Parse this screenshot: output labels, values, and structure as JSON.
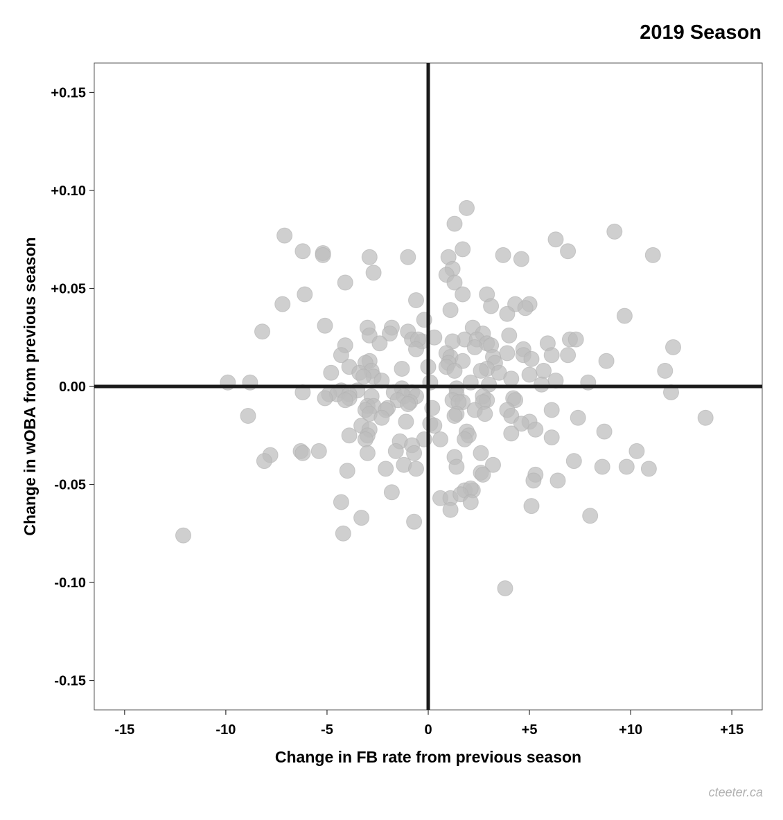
{
  "chart_data": {
    "type": "scatter",
    "title": "2019 Season",
    "xlabel": "Change in FB rate from previous season",
    "ylabel": "Change in wOBA from previous season",
    "xlim": [
      -16.5,
      16.5
    ],
    "ylim": [
      -0.165,
      0.165
    ],
    "x_ticks": [
      -15,
      -10,
      -5,
      0,
      5,
      10,
      15
    ],
    "x_tick_labels": [
      "-15",
      "-10",
      "-5",
      "0",
      "+5",
      "+10",
      "+15"
    ],
    "y_ticks": [
      0.15,
      0.1,
      0.05,
      0.0,
      -0.05,
      -0.1,
      -0.15
    ],
    "y_tick_labels": [
      "+0.15",
      "+0.10",
      "+0.05",
      "0.00",
      "-0.05",
      "-0.10",
      "-0.15"
    ],
    "reference_lines": {
      "x": 0,
      "y": 0
    },
    "grid": false,
    "legend": "none",
    "point_color": "#bdbdbd",
    "points": [
      [
        1.9,
        0.091
      ],
      [
        1.3,
        0.083
      ],
      [
        9.2,
        0.079
      ],
      [
        -7.1,
        0.077
      ],
      [
        6.3,
        0.075
      ],
      [
        1.7,
        0.07
      ],
      [
        6.9,
        0.069
      ],
      [
        -6.2,
        0.069
      ],
      [
        -5.2,
        0.068
      ],
      [
        -5.2,
        0.067
      ],
      [
        -2.9,
        0.066
      ],
      [
        -1.0,
        0.066
      ],
      [
        1.0,
        0.066
      ],
      [
        3.7,
        0.067
      ],
      [
        4.6,
        0.065
      ],
      [
        11.1,
        0.067
      ],
      [
        1.2,
        0.06
      ],
      [
        0.9,
        0.057
      ],
      [
        -2.7,
        0.058
      ],
      [
        1.3,
        0.053
      ],
      [
        -4.1,
        0.053
      ],
      [
        1.7,
        0.047
      ],
      [
        2.9,
        0.047
      ],
      [
        -6.1,
        0.047
      ],
      [
        -0.6,
        0.044
      ],
      [
        4.3,
        0.042
      ],
      [
        5.0,
        0.042
      ],
      [
        -7.2,
        0.042
      ],
      [
        3.1,
        0.041
      ],
      [
        1.1,
        0.039
      ],
      [
        4.8,
        0.04
      ],
      [
        3.9,
        0.037
      ],
      [
        9.7,
        0.036
      ],
      [
        -0.2,
        0.034
      ],
      [
        -5.1,
        0.031
      ],
      [
        -3.0,
        0.03
      ],
      [
        2.2,
        0.03
      ],
      [
        -1.8,
        0.03
      ],
      [
        -8.2,
        0.028
      ],
      [
        -1.0,
        0.028
      ],
      [
        2.7,
        0.027
      ],
      [
        -1.9,
        0.027
      ],
      [
        -2.9,
        0.026
      ],
      [
        4.0,
        0.026
      ],
      [
        7.0,
        0.024
      ],
      [
        0.3,
        0.025
      ],
      [
        -0.8,
        0.024
      ],
      [
        1.8,
        0.024
      ],
      [
        2.4,
        0.024
      ],
      [
        7.3,
        0.024
      ],
      [
        -0.3,
        0.023
      ],
      [
        -0.5,
        0.024
      ],
      [
        1.2,
        0.023
      ],
      [
        2.9,
        0.022
      ],
      [
        -2.4,
        0.022
      ],
      [
        5.9,
        0.022
      ],
      [
        -4.1,
        0.021
      ],
      [
        3.1,
        0.021
      ],
      [
        12.1,
        0.02
      ],
      [
        2.3,
        0.02
      ],
      [
        -0.6,
        0.019
      ],
      [
        4.7,
        0.019
      ],
      [
        3.9,
        0.017
      ],
      [
        0.9,
        0.017
      ],
      [
        -4.3,
        0.016
      ],
      [
        4.7,
        0.016
      ],
      [
        6.1,
        0.016
      ],
      [
        6.9,
        0.016
      ],
      [
        1.1,
        0.015
      ],
      [
        3.2,
        0.015
      ],
      [
        -2.9,
        0.013
      ],
      [
        5.1,
        0.014
      ],
      [
        8.8,
        0.013
      ],
      [
        -3.1,
        0.012
      ],
      [
        1.7,
        0.013
      ],
      [
        1.0,
        0.012
      ],
      [
        3.3,
        0.012
      ],
      [
        0.9,
        0.01
      ],
      [
        0.0,
        0.01
      ],
      [
        -3.9,
        0.01
      ],
      [
        2.9,
        0.009
      ],
      [
        -1.3,
        0.009
      ],
      [
        1.3,
        0.008
      ],
      [
        2.6,
        0.008
      ],
      [
        -2.8,
        0.008
      ],
      [
        11.7,
        0.008
      ],
      [
        5.7,
        0.008
      ],
      [
        -4.8,
        0.007
      ],
      [
        3.5,
        0.007
      ],
      [
        -3.4,
        0.007
      ],
      [
        -2.7,
        0.005
      ],
      [
        -3.2,
        0.005
      ],
      [
        4.1,
        0.004
      ],
      [
        5.0,
        0.006
      ],
      [
        -2.3,
        0.003
      ],
      [
        6.3,
        0.003
      ],
      [
        -9.9,
        0.002
      ],
      [
        -8.8,
        0.002
      ],
      [
        2.1,
        0.002
      ],
      [
        0.1,
        0.002
      ],
      [
        7.9,
        0.002
      ],
      [
        5.6,
        0.001
      ],
      [
        3.0,
        0.001
      ],
      [
        1.4,
        -0.001
      ],
      [
        -1.3,
        -0.001
      ],
      [
        -4.3,
        -0.002
      ],
      [
        -3.5,
        -0.002
      ],
      [
        -0.8,
        -0.003
      ],
      [
        -1.7,
        -0.003
      ],
      [
        12.0,
        -0.003
      ],
      [
        -6.2,
        -0.003
      ],
      [
        -4.9,
        -0.004
      ],
      [
        -4.5,
        -0.004
      ],
      [
        -3.9,
        -0.004
      ],
      [
        1.4,
        -0.004
      ],
      [
        -2.8,
        -0.005
      ],
      [
        2.7,
        -0.005
      ],
      [
        -1.2,
        -0.005
      ],
      [
        -0.6,
        -0.005
      ],
      [
        -5.1,
        -0.006
      ],
      [
        -3.9,
        -0.006
      ],
      [
        4.2,
        -0.006
      ],
      [
        1.2,
        -0.007
      ],
      [
        -1.5,
        -0.007
      ],
      [
        4.3,
        -0.007
      ],
      [
        -4.1,
        -0.007
      ],
      [
        2.9,
        -0.007
      ],
      [
        1.7,
        -0.008
      ],
      [
        -0.9,
        -0.008
      ],
      [
        2.7,
        -0.008
      ],
      [
        1.5,
        -0.008
      ],
      [
        -1.0,
        -0.009
      ],
      [
        -3.0,
        -0.01
      ],
      [
        -2.7,
        -0.01
      ],
      [
        -2.0,
        -0.011
      ],
      [
        0.2,
        -0.011
      ],
      [
        3.9,
        -0.012
      ],
      [
        6.1,
        -0.012
      ],
      [
        -3.1,
        -0.012
      ],
      [
        -2.1,
        -0.012
      ],
      [
        2.3,
        -0.012
      ],
      [
        -2.9,
        -0.014
      ],
      [
        2.8,
        -0.014
      ],
      [
        1.4,
        -0.014
      ],
      [
        4.1,
        -0.015
      ],
      [
        1.3,
        -0.015
      ],
      [
        -8.9,
        -0.015
      ],
      [
        13.7,
        -0.016
      ],
      [
        7.4,
        -0.016
      ],
      [
        -2.3,
        -0.016
      ],
      [
        5.0,
        -0.018
      ],
      [
        0.1,
        -0.019
      ],
      [
        4.6,
        -0.019
      ],
      [
        -3.3,
        -0.02
      ],
      [
        0.3,
        -0.02
      ],
      [
        -2.9,
        -0.022
      ],
      [
        5.3,
        -0.022
      ],
      [
        -1.1,
        -0.018
      ],
      [
        1.9,
        -0.023
      ],
      [
        -3.0,
        -0.025
      ],
      [
        -3.9,
        -0.025
      ],
      [
        4.1,
        -0.024
      ],
      [
        2.0,
        -0.025
      ],
      [
        8.7,
        -0.023
      ],
      [
        6.1,
        -0.026
      ],
      [
        -3.1,
        -0.027
      ],
      [
        -1.4,
        -0.028
      ],
      [
        -0.2,
        -0.027
      ],
      [
        0.6,
        -0.027
      ],
      [
        1.8,
        -0.027
      ],
      [
        -0.8,
        -0.03
      ],
      [
        10.3,
        -0.033
      ],
      [
        -1.6,
        -0.033
      ],
      [
        -3.0,
        -0.034
      ],
      [
        -0.7,
        -0.034
      ],
      [
        -6.3,
        -0.033
      ],
      [
        -6.2,
        -0.034
      ],
      [
        -7.8,
        -0.035
      ],
      [
        -5.4,
        -0.033
      ],
      [
        2.6,
        -0.034
      ],
      [
        -8.1,
        -0.038
      ],
      [
        1.3,
        -0.036
      ],
      [
        7.2,
        -0.038
      ],
      [
        3.2,
        -0.04
      ],
      [
        1.4,
        -0.041
      ],
      [
        -1.2,
        -0.04
      ],
      [
        -0.6,
        -0.042
      ],
      [
        -2.1,
        -0.042
      ],
      [
        -4.0,
        -0.043
      ],
      [
        8.6,
        -0.041
      ],
      [
        9.8,
        -0.041
      ],
      [
        10.9,
        -0.042
      ],
      [
        2.6,
        -0.044
      ],
      [
        2.7,
        -0.045
      ],
      [
        5.3,
        -0.045
      ],
      [
        5.2,
        -0.048
      ],
      [
        6.4,
        -0.048
      ],
      [
        1.8,
        -0.053
      ],
      [
        2.2,
        -0.053
      ],
      [
        2.1,
        -0.052
      ],
      [
        -1.8,
        -0.054
      ],
      [
        0.6,
        -0.057
      ],
      [
        1.1,
        -0.057
      ],
      [
        1.6,
        -0.055
      ],
      [
        -4.3,
        -0.059
      ],
      [
        2.1,
        -0.059
      ],
      [
        5.1,
        -0.061
      ],
      [
        1.1,
        -0.063
      ],
      [
        8.0,
        -0.066
      ],
      [
        -3.3,
        -0.067
      ],
      [
        -0.7,
        -0.069
      ],
      [
        -4.2,
        -0.075
      ],
      [
        -12.1,
        -0.076
      ],
      [
        3.8,
        -0.103
      ]
    ]
  },
  "credit": "cteeter.ca"
}
